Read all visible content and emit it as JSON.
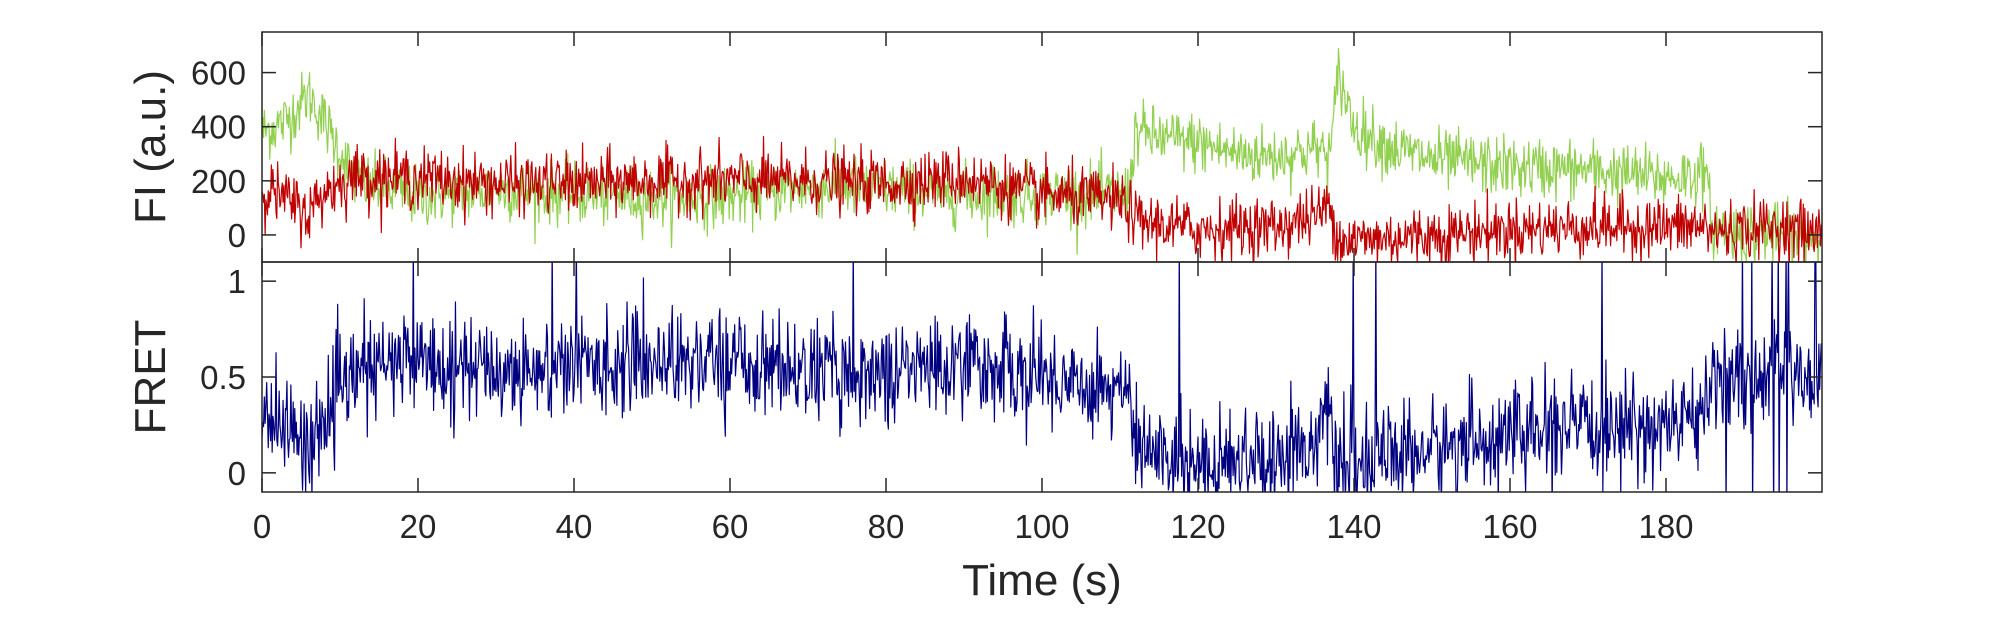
{
  "chart_data": [
    {
      "type": "line",
      "ylabel": "FI (a.u.)",
      "xlim": [
        0,
        200
      ],
      "ylim": [
        -100,
        750
      ],
      "yticks": [
        0,
        200,
        400,
        600
      ],
      "xticks": [
        0,
        20,
        40,
        60,
        80,
        100,
        120,
        140,
        160,
        180
      ],
      "grid": false,
      "series": [
        {
          "color": "#92d050",
          "x": [
            0,
            3,
            6,
            8,
            12,
            20,
            30,
            40,
            50,
            60,
            70,
            80,
            90,
            100,
            108,
            111,
            112,
            115,
            120,
            125,
            130,
            135,
            137,
            138,
            140,
            145,
            150,
            160,
            170,
            180,
            185,
            186,
            190,
            195,
            200
          ],
          "y": [
            380,
            420,
            520,
            420,
            200,
            140,
            170,
            150,
            140,
            140,
            180,
            170,
            150,
            150,
            150,
            150,
            380,
            360,
            340,
            300,
            290,
            320,
            300,
            600,
            400,
            320,
            280,
            250,
            240,
            210,
            230,
            30,
            10,
            0,
            -10
          ]
        },
        {
          "color": "#c00000",
          "x": [
            0,
            3,
            6,
            8,
            12,
            20,
            30,
            40,
            50,
            60,
            70,
            80,
            90,
            100,
            108,
            111,
            112,
            115,
            120,
            125,
            130,
            135,
            137,
            138,
            140,
            150,
            160,
            170,
            180,
            185,
            186,
            190,
            195,
            200
          ],
          "y": [
            180,
            130,
            80,
            160,
            220,
            210,
            190,
            190,
            200,
            200,
            200,
            190,
            210,
            150,
            130,
            110,
            50,
            40,
            20,
            30,
            30,
            70,
            110,
            -10,
            -20,
            0,
            20,
            30,
            30,
            30,
            10,
            20,
            30,
            0
          ]
        }
      ]
    },
    {
      "type": "line",
      "xlabel": "Time (s)",
      "ylabel": "FRET",
      "xlim": [
        0,
        200
      ],
      "ylim": [
        -0.1,
        1.1
      ],
      "yticks": [
        0,
        0.5,
        1
      ],
      "xticks": [
        0,
        20,
        40,
        60,
        80,
        100,
        120,
        140,
        160,
        180
      ],
      "grid": false,
      "series": [
        {
          "color": "#000080",
          "x": [
            0,
            3,
            6,
            8,
            12,
            20,
            30,
            40,
            50,
            60,
            70,
            80,
            90,
            100,
            108,
            111,
            112,
            115,
            120,
            125,
            130,
            135,
            137,
            138,
            140,
            150,
            160,
            170,
            180,
            185,
            186,
            190,
            195,
            200
          ],
          "y": [
            0.32,
            0.24,
            0.14,
            0.28,
            0.52,
            0.6,
            0.53,
            0.56,
            0.59,
            0.59,
            0.53,
            0.52,
            0.58,
            0.5,
            0.46,
            0.42,
            0.12,
            0.1,
            0.06,
            0.09,
            0.09,
            0.18,
            0.27,
            0.02,
            0.05,
            0.12,
            0.2,
            0.22,
            0.25,
            0.3,
            0.5,
            0.5,
            0.5,
            0.5
          ]
        }
      ]
    }
  ]
}
